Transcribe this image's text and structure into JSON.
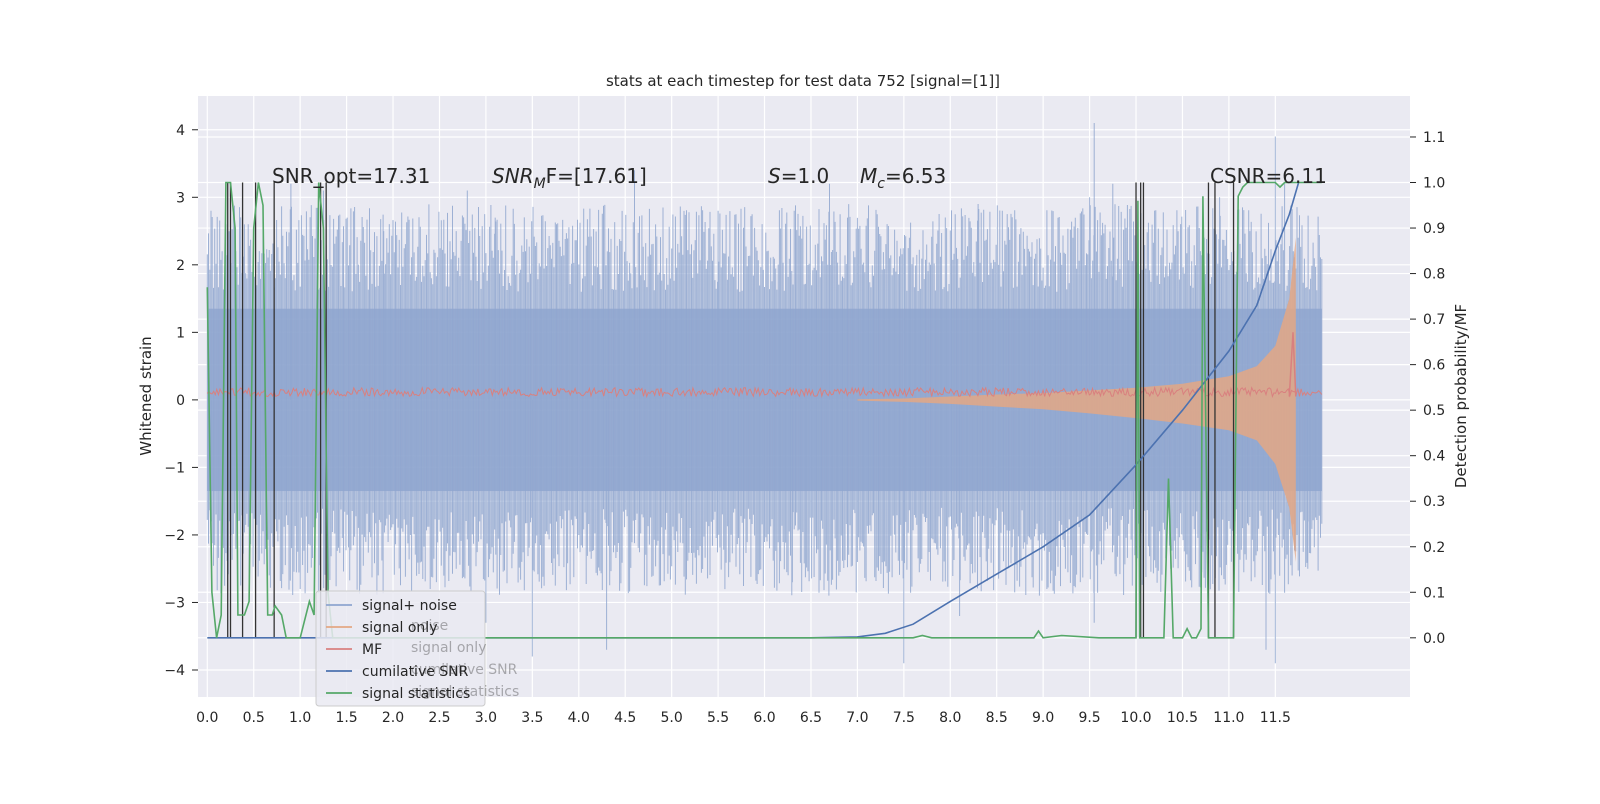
{
  "chart_data": {
    "type": "line",
    "title": "stats at each timestep for test data 752 [signal=[1]]",
    "ylabel": "Whitened strain",
    "y2label": "Detection probability/MF",
    "xlim": [
      -0.1,
      12.95
    ],
    "ylim": [
      -4.4,
      4.5
    ],
    "y2lim": [
      -0.13,
      1.19
    ],
    "x_ticks": [
      "0.0",
      "0.5",
      "1.0",
      "1.5",
      "2.0",
      "2.5",
      "3.0",
      "3.5",
      "4.0",
      "4.5",
      "5.0",
      "5.5",
      "6.0",
      "6.5",
      "7.0",
      "7.5",
      "8.0",
      "8.5",
      "9.0",
      "9.5",
      "10.0",
      "10.5",
      "11.0",
      "11.5"
    ],
    "y_ticks": [
      "4",
      "3",
      "2",
      "1",
      "0",
      "−1",
      "−2",
      "−3",
      "−4"
    ],
    "y2_ticks": [
      "1.1",
      "1.0",
      "0.9",
      "0.8",
      "0.7",
      "0.6",
      "0.5",
      "0.4",
      "0.3",
      "0.2",
      "0.1",
      "0.0"
    ],
    "annotations": {
      "snr_opt": "SNR_opt=17.31",
      "snr_mf_prefix": "SNR",
      "snr_mf_sub": "M",
      "snr_mf_suffix": "F=[17.61]",
      "s_prefix": "S",
      "s_value": "=1.0",
      "mc_prefix": "M",
      "mc_sub": "c",
      "mc_value": "=6.53",
      "csnr": "CSNR=6.11"
    },
    "legend_position": "lower-left",
    "legend": [
      {
        "label": "signal+ noise",
        "color": "#8fa6cf"
      },
      {
        "label": "signal only",
        "color": "#e3a785"
      },
      {
        "label": "MF",
        "color": "#d9807f"
      },
      {
        "label": "cumilative SNR",
        "color": "#4c72b0"
      },
      {
        "label": "signal statistics",
        "color": "#55a868"
      }
    ],
    "legend_ghost": [
      "noise",
      "signal only",
      "cumilative SNR",
      "signal statistics"
    ],
    "series": [
      {
        "name": "signal+ noise",
        "color": "#8fa6cf",
        "envelope_x": [
          0.0,
          12.0
        ],
        "envelope_y": [
          1.35,
          -1.35
        ],
        "spike_peaks_high": [
          [
            0.2,
            2.6
          ],
          [
            0.4,
            2.4
          ],
          [
            0.9,
            3.2
          ],
          [
            1.25,
            3.1
          ],
          [
            1.9,
            2.5
          ],
          [
            2.8,
            3.1
          ],
          [
            3.1,
            2.7
          ],
          [
            4.6,
            3.4
          ],
          [
            5.5,
            2.8
          ],
          [
            6.7,
            3.2
          ],
          [
            8.3,
            2.9
          ],
          [
            9.5,
            3.0
          ],
          [
            9.55,
            4.1
          ],
          [
            9.75,
            3.2
          ],
          [
            10.9,
            3.0
          ],
          [
            11.5,
            3.9
          ],
          [
            11.6,
            3.2
          ]
        ],
        "spike_peaks_low": [
          [
            0.05,
            -1.8
          ],
          [
            0.45,
            -2.7
          ],
          [
            1.0,
            -2.8
          ],
          [
            2.4,
            -2.8
          ],
          [
            3.0,
            -3.3
          ],
          [
            3.5,
            -3.8
          ],
          [
            4.2,
            -2.6
          ],
          [
            4.3,
            -3.0
          ],
          [
            4.3,
            -3.7
          ],
          [
            6.3,
            -2.7
          ],
          [
            7.5,
            -3.9
          ],
          [
            8.1,
            -3.2
          ],
          [
            9.55,
            -3.3
          ],
          [
            10.7,
            -3.3
          ],
          [
            11.4,
            -3.7
          ],
          [
            11.5,
            -3.9
          ],
          [
            11.85,
            -2.5
          ]
        ]
      },
      {
        "name": "signal only",
        "color": "#e3a785",
        "upper": [
          [
            7.0,
            0.01
          ],
          [
            7.5,
            0.02
          ],
          [
            8.0,
            0.05
          ],
          [
            8.5,
            0.08
          ],
          [
            9.0,
            0.1
          ],
          [
            9.5,
            0.14
          ],
          [
            10.0,
            0.18
          ],
          [
            10.5,
            0.24
          ],
          [
            11.0,
            0.35
          ],
          [
            11.3,
            0.5
          ],
          [
            11.5,
            0.8
          ],
          [
            11.65,
            1.5
          ],
          [
            11.72,
            2.4
          ]
        ],
        "lower": [
          [
            7.0,
            -0.01
          ],
          [
            7.5,
            -0.03
          ],
          [
            8.0,
            -0.06
          ],
          [
            8.5,
            -0.1
          ],
          [
            9.0,
            -0.14
          ],
          [
            9.5,
            -0.2
          ],
          [
            10.0,
            -0.27
          ],
          [
            10.5,
            -0.35
          ],
          [
            11.0,
            -0.45
          ],
          [
            11.3,
            -0.6
          ],
          [
            11.5,
            -0.95
          ],
          [
            11.65,
            -1.6
          ],
          [
            11.72,
            -2.4
          ]
        ]
      },
      {
        "name": "MF",
        "color": "#d9807f",
        "band": [
          0.05,
          0.18
        ],
        "peak": [
          [
            11.65,
            0.05
          ],
          [
            11.69,
            1.0
          ],
          [
            11.72,
            0.05
          ]
        ]
      },
      {
        "name": "cumilative SNR",
        "color": "#4c72b0",
        "axis": "right",
        "x": [
          0.0,
          6.5,
          7.0,
          7.3,
          7.6,
          8.0,
          8.5,
          9.0,
          9.5,
          10.0,
          10.5,
          11.0,
          11.3,
          11.5,
          11.65,
          11.75
        ],
        "y": [
          0.0,
          0.0,
          0.002,
          0.01,
          0.03,
          0.08,
          0.14,
          0.2,
          0.27,
          0.38,
          0.5,
          0.63,
          0.73,
          0.85,
          0.93,
          1.0
        ]
      },
      {
        "name": "signal statistics",
        "color": "#55a868",
        "axis": "right",
        "x": [
          0.0,
          0.05,
          0.1,
          0.15,
          0.2,
          0.25,
          0.3,
          0.33,
          0.4,
          0.45,
          0.5,
          0.55,
          0.6,
          0.65,
          0.7,
          0.73,
          0.8,
          0.85,
          1.0,
          1.1,
          1.15,
          1.2,
          1.25,
          1.3,
          1.35,
          1.4,
          2.0,
          7.6,
          7.7,
          7.8,
          8.0,
          8.5,
          8.9,
          8.95,
          9.0,
          9.2,
          9.6,
          10.0,
          10.02,
          10.04,
          10.1,
          10.3,
          10.35,
          10.4,
          10.5,
          10.55,
          10.6,
          10.65,
          10.7,
          10.72,
          10.78,
          10.82,
          10.9,
          11.0,
          11.05,
          11.1,
          11.15,
          11.2,
          11.5,
          11.55,
          11.6,
          11.7,
          12.0
        ],
        "y": [
          0.77,
          0.1,
          0.0,
          0.05,
          1.0,
          1.0,
          0.9,
          0.05,
          0.05,
          0.08,
          0.9,
          1.0,
          0.95,
          0.05,
          0.05,
          0.07,
          0.05,
          0.0,
          0.0,
          0.08,
          0.05,
          1.0,
          0.9,
          0.1,
          0.0,
          0.0,
          0.0,
          0.0,
          0.005,
          0.0,
          0.0,
          0.0,
          0.0,
          0.015,
          0.0,
          0.005,
          0.0,
          0.0,
          0.96,
          0.0,
          0.0,
          0.0,
          0.35,
          0.0,
          0.0,
          0.02,
          0.0,
          0.0,
          0.02,
          0.97,
          0.0,
          0.0,
          0.0,
          0.0,
          0.0,
          0.97,
          0.99,
          1.0,
          1.0,
          0.99,
          1.0,
          1.0,
          1.0
        ]
      },
      {
        "name": "decision markers",
        "color": "#333333",
        "axis": "right",
        "x": [
          0.22,
          0.25,
          0.38,
          0.52,
          0.72,
          1.22,
          1.28,
          10.0,
          10.05,
          10.08,
          10.78,
          10.85,
          11.05
        ],
        "y_from": 0.0,
        "y_to": 1.0
      }
    ]
  }
}
